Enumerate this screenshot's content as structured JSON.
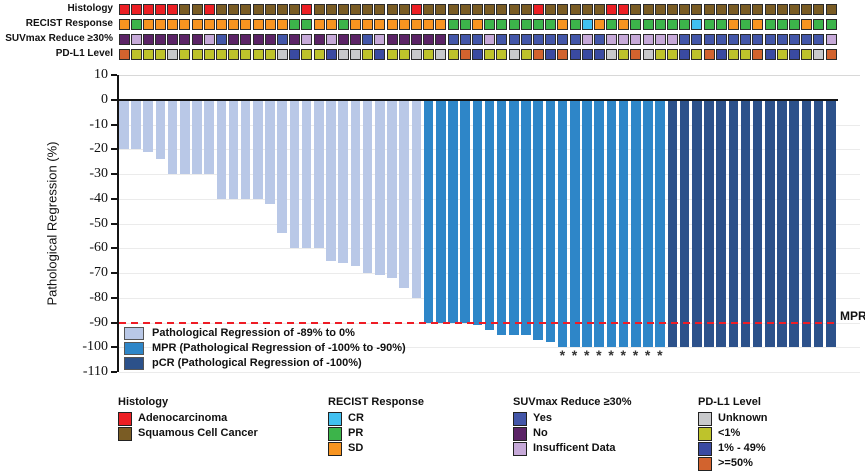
{
  "chart_data": {
    "type": "bar",
    "subtype": "waterfall",
    "title": "",
    "xlabel": "",
    "ylabel": "Pathological Regression (%)",
    "ylim": [
      10,
      -110
    ],
    "yticks": [
      10,
      0,
      -10,
      -20,
      -30,
      -40,
      -50,
      -60,
      -70,
      -80,
      -90,
      -100,
      -110
    ],
    "grid": "horizontal",
    "n_bars": 59,
    "values": [
      -20,
      -20,
      -21,
      -24,
      -30,
      -30,
      -30,
      -30,
      -40,
      -40,
      -40,
      -40,
      -42,
      -54,
      -60,
      -60,
      -60,
      -65,
      -66,
      -67,
      -70,
      -71,
      -72,
      -76,
      -80,
      -90,
      -90,
      -90,
      -90,
      -91,
      -93,
      -95,
      -95,
      -95,
      -97,
      -98,
      -100,
      -100,
      -100,
      -100,
      -100,
      -100,
      -100,
      -100,
      -100,
      -100,
      -100,
      -100,
      -100,
      -100,
      -100,
      -100,
      -100,
      -100,
      -100,
      -100,
      -100,
      -100,
      -100
    ],
    "group_counts": [
      25,
      20,
      14
    ],
    "groups": [
      {
        "label": "Pathological Regression of -89% to 0%",
        "color": "#b9c8e7"
      },
      {
        "label": "MPR (Pathological Regression of -100% to -90%)",
        "color": "#2e86c8"
      },
      {
        "label": "pCR (Pathological Regression of -100%)",
        "color": "#2c518a"
      }
    ],
    "asterisk_indices": [
      36,
      37,
      38,
      39,
      40,
      41,
      42,
      43,
      44
    ],
    "mpr_line": {
      "y": -90,
      "label": "MPR",
      "color": "#ee1c25"
    }
  },
  "tracks": {
    "rows": [
      {
        "label": "Histology",
        "codes": "AAAAASSASSSSSSSASSSSSSSSASSSSSSSSSASSSSSAASSSSSSSSSSSSSSSSS",
        "palette": {
          "A": "#ec1f24",
          "S": "#7a5c24"
        }
      },
      {
        "label": "RECIST Response",
        "codes": "SPSSSSSSSSSSSSPPSSPSSSSSSSSPPSPPPPPPSPCSPSPPPPPCPPSPSPPPSPP",
        "palette": {
          "C": "#41c0f0",
          "P": "#3cb44a",
          "S": "#f79420"
        }
      },
      {
        "label": "SUVmax Reduce ≥30%",
        "codes": "NINNNNNIYNNNNYNININNYINNNNNYYYIYYYYYYYIYIIIIIIYYYYYYYYYYYYI",
        "palette": {
          "Y": "#4356a8",
          "N": "#5b2366",
          "I": "#c6a9d8"
        }
      },
      {
        "label": "PD-L1 Level",
        "codes": "HLLLULLLLLLLLUMLLMUULMLLULULHMLLULHMHMMMULHULLMLHMLLHMLMLUH",
        "palette": {
          "U": "#c8c9cb",
          "L": "#bec32b",
          "M": "#3a4aa1",
          "H": "#d2632e"
        }
      }
    ]
  },
  "legends": [
    {
      "title": "Histology",
      "items": [
        {
          "label": "Adenocarcinoma",
          "color": "#ec1f24"
        },
        {
          "label": "Squamous Cell Cancer",
          "color": "#7a5c24"
        }
      ]
    },
    {
      "title": "RECIST Response",
      "items": [
        {
          "label": "CR",
          "color": "#41c0f0"
        },
        {
          "label": "PR",
          "color": "#3cb44a"
        },
        {
          "label": "SD",
          "color": "#f79420"
        }
      ]
    },
    {
      "title": "SUVmax Reduce ≥30%",
      "items": [
        {
          "label": "Yes",
          "color": "#4356a8"
        },
        {
          "label": "No",
          "color": "#5b2366"
        },
        {
          "label": "Insufficent Data",
          "color": "#c6a9d8"
        }
      ]
    },
    {
      "title": "PD-L1 Level",
      "items": [
        {
          "label": "Unknown",
          "color": "#c8c9cb"
        },
        {
          "label": "<1%",
          "color": "#bec32b"
        },
        {
          "label": "1% - 49%",
          "color": "#3a4aa1"
        },
        {
          "label": ">=50%",
          "color": "#d2632e"
        }
      ]
    }
  ]
}
